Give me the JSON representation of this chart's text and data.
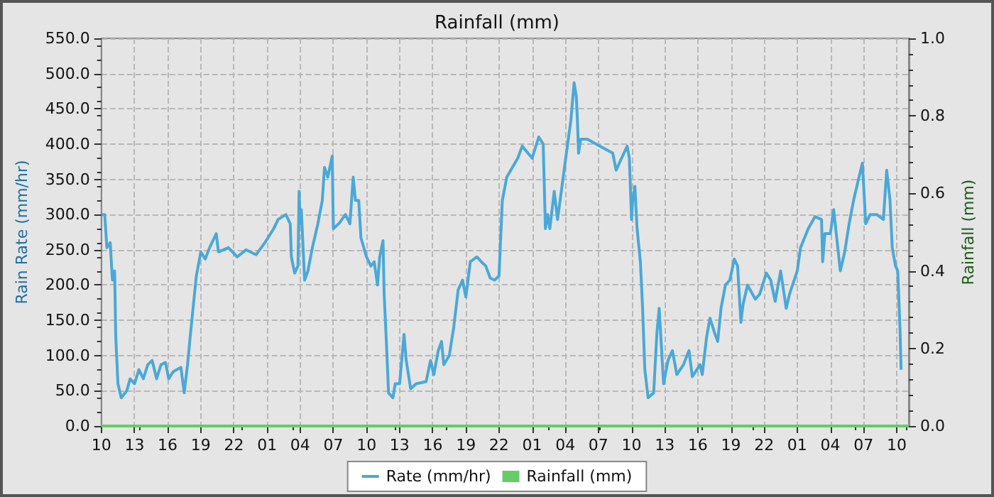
{
  "chart_data": {
    "type": "line",
    "title": "Rainfall (mm)",
    "ylabel": "Rain Rate (mm/hr)",
    "y2label": "Rainfall (mm)",
    "xlim": [
      "--01-01T10:00",
      "--01-04T11:06"
    ],
    "xticks": [
      {
        "value": "--01-01T10:00",
        "label": "10"
      },
      {
        "value": "--01-01T13:00",
        "label": "13"
      },
      {
        "value": "--01-01T16:00",
        "label": "16"
      },
      {
        "value": "--01-01T19:00",
        "label": "19"
      },
      {
        "value": "--01-01T22:00",
        "label": "22"
      },
      {
        "value": "--01-02T01:00",
        "label": "01"
      },
      {
        "value": "--01-02T04:00",
        "label": "04"
      },
      {
        "value": "--01-02T07:00",
        "label": "07"
      },
      {
        "value": "--01-02T10:00",
        "label": "10"
      },
      {
        "value": "--01-02T13:00",
        "label": "13"
      },
      {
        "value": "--01-02T16:00",
        "label": "16"
      },
      {
        "value": "--01-02T19:00",
        "label": "19"
      },
      {
        "value": "--01-02T22:00",
        "label": "22"
      },
      {
        "value": "--01-03T01:00",
        "label": "01"
      },
      {
        "value": "--01-03T04:00",
        "label": "04"
      },
      {
        "value": "--01-03T07:00",
        "label": "07"
      },
      {
        "value": "--01-03T10:00",
        "label": "10"
      },
      {
        "value": "--01-03T13:00",
        "label": "13"
      },
      {
        "value": "--01-03T16:00",
        "label": "16"
      },
      {
        "value": "--01-03T19:00",
        "label": "19"
      },
      {
        "value": "--01-03T22:00",
        "label": "22"
      },
      {
        "value": "--01-04T01:00",
        "label": "01"
      },
      {
        "value": "--01-04T04:00",
        "label": "04"
      },
      {
        "value": "--01-04T07:00",
        "label": "07"
      },
      {
        "value": "--01-04T10:00",
        "label": "10"
      }
    ],
    "ylim": [
      0,
      550
    ],
    "yticks": [
      {
        "value": 0,
        "label": "0.0"
      },
      {
        "value": 50,
        "label": "50.0"
      },
      {
        "value": 100,
        "label": "100.0"
      },
      {
        "value": 150,
        "label": "150.0"
      },
      {
        "value": 200,
        "label": "200.0"
      },
      {
        "value": 250,
        "label": "250.0"
      },
      {
        "value": 300,
        "label": "300.0"
      },
      {
        "value": 350,
        "label": "350.0"
      },
      {
        "value": 400,
        "label": "400.0"
      },
      {
        "value": 450,
        "label": "450.0"
      },
      {
        "value": 500,
        "label": "500.0"
      },
      {
        "value": 550,
        "label": "550.0"
      }
    ],
    "y2lim": [
      0,
      1
    ],
    "y2ticks": [
      {
        "value": 0,
        "label": "0.0"
      },
      {
        "value": 0.2,
        "label": "0.2"
      },
      {
        "value": 0.4,
        "label": "0.4"
      },
      {
        "value": 0.6,
        "label": "0.6"
      },
      {
        "value": 0.8,
        "label": "0.8"
      },
      {
        "value": 1,
        "label": "1.0"
      }
    ],
    "grid": true,
    "legend": "bottom",
    "marker": "none",
    "line_style": "solid",
    "series": [
      {
        "name": "Rate (mm/hr)",
        "color": "#4aa8d8",
        "x": [
          "--01-01T10:00",
          "--01-01T10:18",
          "--01-01T10:30",
          "--01-01T10:48",
          "--01-01T11:00",
          "--01-01T11:12",
          "--01-01T11:18",
          "--01-01T11:30",
          "--01-01T11:48",
          "--01-01T12:18",
          "--01-01T12:36",
          "--01-01T13:00",
          "--01-01T13:24",
          "--01-01T13:48",
          "--01-01T14:12",
          "--01-01T14:36",
          "--01-01T15:00",
          "--01-01T15:24",
          "--01-01T15:48",
          "--01-01T16:06",
          "--01-01T16:30",
          "--01-01T17:12",
          "--01-01T17:30",
          "--01-01T17:48",
          "--01-01T18:00",
          "--01-01T18:18",
          "--01-01T18:36",
          "--01-01T19:00",
          "--01-01T19:24",
          "--01-01T19:48",
          "--01-01T20:24",
          "--01-01T20:36",
          "--01-01T21:30",
          "--01-01T22:18",
          "--01-01T23:06",
          "--01-02T00:00",
          "--01-02T00:48",
          "--01-02T01:36",
          "--01-02T02:00",
          "--01-02T02:42",
          "--01-02T03:06",
          "--01-02T03:12",
          "--01-02T03:30",
          "--01-02T03:48",
          "--01-02T03:54",
          "--01-02T04:00",
          "--01-02T04:06",
          "--01-02T04:24",
          "--01-02T04:42",
          "--01-02T05:06",
          "--01-02T05:36",
          "--01-02T06:00",
          "--01-02T06:12",
          "--01-02T06:30",
          "--01-02T06:54",
          "--01-02T07:00",
          "--01-02T07:30",
          "--01-02T08:06",
          "--01-02T08:30",
          "--01-02T08:48",
          "--01-02T09:00",
          "--01-02T09:18",
          "--01-02T09:30",
          "--01-02T10:00",
          "--01-02T10:24",
          "--01-02T10:42",
          "--01-02T11:00",
          "--01-02T11:12",
          "--01-02T11:30",
          "--01-02T11:36",
          "--01-02T11:48",
          "--01-02T12:00",
          "--01-02T12:24",
          "--01-02T12:36",
          "--01-02T13:00",
          "--01-02T13:24",
          "--01-02T13:36",
          "--01-02T14:00",
          "--01-02T14:30",
          "--01-02T15:24",
          "--01-02T15:48",
          "--01-02T16:06",
          "--01-02T16:30",
          "--01-02T16:48",
          "--01-02T17:00",
          "--01-02T17:30",
          "--01-02T17:54",
          "--01-02T18:18",
          "--01-02T18:42",
          "--01-02T19:00",
          "--01-02T19:24",
          "--01-02T20:00",
          "--01-02T20:24",
          "--01-02T20:48",
          "--01-02T21:12",
          "--01-02T21:36",
          "--01-02T22:00",
          "--01-02T22:18",
          "--01-02T22:42",
          "--01-02T23:42",
          "--01-03T00:06",
          "--01-03T01:00",
          "--01-03T01:36",
          "--01-03T02:00",
          "--01-03T02:12",
          "--01-03T02:24",
          "--01-03T02:36",
          "--01-03T03:00",
          "--01-03T03:18",
          "--01-03T03:42",
          "--01-03T04:06",
          "--01-03T04:30",
          "--01-03T04:48",
          "--01-03T05:00",
          "--01-03T05:06",
          "--01-03T05:12",
          "--01-03T05:24",
          "--01-03T06:00",
          "--01-03T06:48",
          "--01-03T07:36",
          "--01-03T08:18",
          "--01-03T08:36",
          "--01-03T09:06",
          "--01-03T09:36",
          "--01-03T09:48",
          "--01-03T10:00",
          "--01-03T10:06",
          "--01-03T10:18",
          "--01-03T10:30",
          "--01-03T10:48",
          "--01-03T11:00",
          "--01-03T11:12",
          "--01-03T11:30",
          "--01-03T12:00",
          "--01-03T12:18",
          "--01-03T12:30",
          "--01-03T12:42",
          "--01-03T12:54",
          "--01-03T13:18",
          "--01-03T13:42",
          "--01-03T14:06",
          "--01-03T14:42",
          "--01-03T15:12",
          "--01-03T15:30",
          "--01-03T16:12",
          "--01-03T16:24",
          "--01-03T16:48",
          "--01-03T17:06",
          "--01-03T17:30",
          "--01-03T17:48",
          "--01-03T18:06",
          "--01-03T18:30",
          "--01-03T18:54",
          "--01-03T19:18",
          "--01-03T19:36",
          "--01-03T19:54",
          "--01-03T20:06",
          "--01-03T20:30",
          "--01-03T21:12",
          "--01-03T21:36",
          "--01-03T22:12",
          "--01-03T22:36",
          "--01-03T23:00",
          "--01-03T23:30",
          "--01-04T00:00",
          "--01-04T00:18",
          "--01-04T01:00",
          "--01-04T01:18",
          "--01-04T02:00",
          "--01-04T02:36",
          "--01-04T03:12",
          "--01-04T03:18",
          "--01-04T03:30",
          "--01-04T04:00",
          "--01-04T04:18",
          "--01-04T04:54",
          "--01-04T05:18",
          "--01-04T05:42",
          "--01-04T06:06",
          "--01-04T06:30",
          "--01-04T06:54",
          "--01-04T07:12",
          "--01-04T07:36",
          "--01-04T08:12",
          "--01-04T08:48",
          "--01-04T09:06",
          "--01-04T09:24",
          "--01-04T09:36",
          "--01-04T09:54",
          "--01-04T10:06",
          "--01-04T10:18",
          "--01-04T10:24"
        ],
        "values": [
          300,
          300,
          253,
          260,
          207,
          220,
          127,
          60,
          40,
          50,
          67,
          60,
          80,
          67,
          87,
          93,
          67,
          87,
          90,
          67,
          77,
          83,
          47,
          87,
          120,
          167,
          213,
          247,
          237,
          253,
          273,
          247,
          253,
          240,
          250,
          243,
          260,
          280,
          293,
          300,
          287,
          240,
          217,
          227,
          333,
          287,
          307,
          207,
          220,
          253,
          287,
          320,
          367,
          353,
          383,
          280,
          287,
          300,
          287,
          353,
          320,
          320,
          267,
          240,
          227,
          233,
          200,
          240,
          263,
          187,
          120,
          47,
          40,
          60,
          60,
          130,
          93,
          53,
          60,
          63,
          93,
          73,
          107,
          120,
          87,
          100,
          140,
          193,
          207,
          183,
          233,
          240,
          233,
          227,
          210,
          207,
          213,
          320,
          353,
          380,
          397,
          380,
          410,
          400,
          280,
          300,
          280,
          333,
          293,
          340,
          387,
          433,
          487,
          467,
          433,
          387,
          407,
          407,
          400,
          393,
          387,
          363,
          380,
          397,
          380,
          293,
          320,
          340,
          280,
          233,
          167,
          80,
          40,
          47,
          133,
          167,
          113,
          60,
          93,
          107,
          73,
          87,
          107,
          70,
          87,
          73,
          127,
          153,
          133,
          120,
          167,
          200,
          207,
          237,
          227,
          147,
          173,
          200,
          180,
          187,
          217,
          207,
          177,
          220,
          167,
          187,
          220,
          253,
          280,
          297,
          293,
          233,
          273,
          273,
          307,
          220,
          247,
          287,
          320,
          347,
          373,
          287,
          300,
          300,
          293,
          363,
          320,
          253,
          227,
          220,
          140,
          80
        ]
      },
      {
        "name": "Rainfall (mm)",
        "axis": "y2",
        "color": "#66cc66",
        "x": [
          "--01-01T10:00",
          "--01-04T11:06"
        ],
        "values": [
          0,
          0
        ]
      }
    ]
  }
}
